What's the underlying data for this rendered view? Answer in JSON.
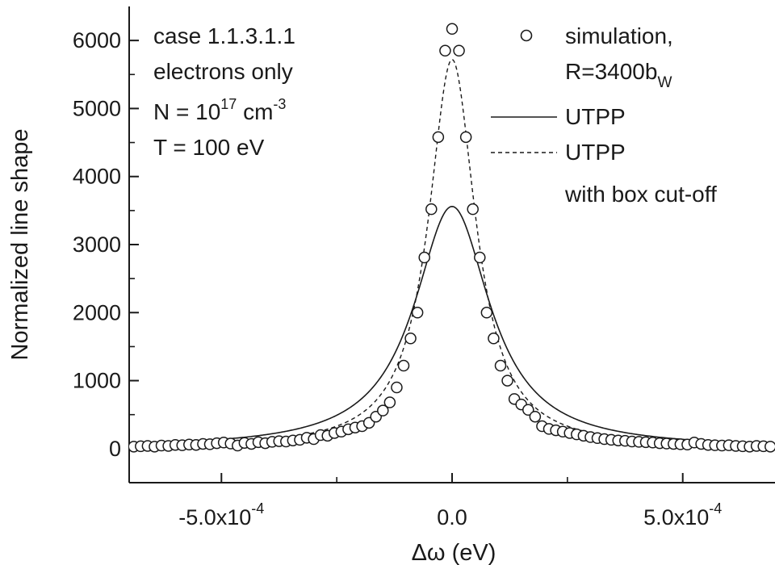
{
  "chart_data": {
    "type": "line",
    "title": "",
    "xlabel": "Δω (eV)",
    "ylabel": "Normalized line shape",
    "xlim": [
      -0.0007,
      0.0007
    ],
    "ylim": [
      -500,
      6500
    ],
    "x_ticks": [
      {
        "value": -0.0005,
        "mantissa": "-5.0x10",
        "exp": "-4"
      },
      {
        "value": 0.0,
        "mantissa": "0.0",
        "exp": ""
      },
      {
        "value": 0.0005,
        "mantissa": "5.0x10",
        "exp": "-4"
      }
    ],
    "x_minor_ticks": [
      -0.00025,
      0.00025
    ],
    "y_ticks": [
      0,
      1000,
      2000,
      3000,
      4000,
      5000,
      6000
    ],
    "y_tick_labels": [
      "0",
      "1000",
      "2000",
      "3000",
      "4000",
      "5000",
      "6000"
    ],
    "y_minor_ticks": [
      500,
      1500,
      2500,
      3500,
      4500,
      5500
    ],
    "annotations": {
      "line1": "case 1.1.3.1.1",
      "line2": "electrons only",
      "line3_main": "N = 10",
      "line3_exp": "17",
      "line3_unit": " cm",
      "line3_unit_exp": "-3",
      "line4": "T = 100 eV"
    },
    "legend": {
      "placement": "top-right",
      "items": [
        {
          "kind": "marker",
          "line1": "simulation,",
          "line2_main": "R=3400b",
          "line2_sub": "W"
        },
        {
          "kind": "solid",
          "line1": "UTPP"
        },
        {
          "kind": "dashed",
          "line1": "UTPP",
          "line2": "with box cut-off"
        }
      ]
    },
    "series": [
      {
        "name": "simulation, R=3400bW",
        "style": "circle",
        "x": [
          -0.00069,
          -0.000675,
          -0.00066,
          -0.000645,
          -0.00063,
          -0.000615,
          -0.0006,
          -0.000585,
          -0.00057,
          -0.000555,
          -0.00054,
          -0.000525,
          -0.00051,
          -0.000495,
          -0.00048,
          -0.000465,
          -0.00045,
          -0.000435,
          -0.00042,
          -0.000405,
          -0.00039,
          -0.000375,
          -0.00036,
          -0.000345,
          -0.00033,
          -0.000315,
          -0.0003,
          -0.000285,
          -0.00027,
          -0.000255,
          -0.00024,
          -0.000225,
          -0.00021,
          -0.000195,
          -0.00018,
          -0.000165,
          -0.00015,
          -0.000135,
          -0.00012,
          -0.000105,
          -9e-05,
          -7.5e-05,
          -6e-05,
          -4.5e-05,
          -3e-05,
          -1.5e-05,
          0.0,
          1.5e-05,
          3e-05,
          4.5e-05,
          6e-05,
          7.5e-05,
          9e-05,
          0.000105,
          0.00012,
          0.000135,
          0.00015,
          0.000165,
          0.00018,
          0.000195,
          0.00021,
          0.000225,
          0.00024,
          0.000255,
          0.00027,
          0.000285,
          0.0003,
          0.000315,
          0.00033,
          0.000345,
          0.00036,
          0.000375,
          0.00039,
          0.000405,
          0.00042,
          0.000435,
          0.00045,
          0.000465,
          0.00048,
          0.000495,
          0.00051,
          0.000525,
          0.00054,
          0.000555,
          0.00057,
          0.000585,
          0.0006,
          0.000615,
          0.00063,
          0.000645,
          0.00066,
          0.000675,
          0.00069
        ],
        "y": [
          30,
          35,
          40,
          30,
          45,
          40,
          55,
          50,
          60,
          55,
          70,
          65,
          80,
          90,
          75,
          45,
          85,
          70,
          95,
          80,
          100,
          110,
          105,
          120,
          130,
          160,
          140,
          200,
          190,
          230,
          250,
          285,
          310,
          330,
          380,
          470,
          560,
          680,
          900,
          1220,
          1620,
          2000,
          2810,
          3520,
          4580,
          5850,
          6170,
          5850,
          4580,
          3520,
          2810,
          2000,
          1620,
          1220,
          1000,
          730,
          650,
          570,
          470,
          330,
          290,
          270,
          250,
          230,
          210,
          190,
          170,
          155,
          140,
          130,
          120,
          115,
          105,
          100,
          95,
          90,
          80,
          75,
          70,
          65,
          60,
          90,
          70,
          55,
          50,
          45,
          50,
          40,
          35,
          30,
          40,
          35,
          30
        ]
      },
      {
        "name": "UTPP",
        "style": "solid",
        "function": "lorentzian",
        "peak": 3560,
        "hwhm": 0.0001
      },
      {
        "name": "UTPP with box cut-off",
        "style": "dashed",
        "function": "lorentzian",
        "peak": 5720,
        "hwhm": 6.2e-05
      }
    ]
  }
}
